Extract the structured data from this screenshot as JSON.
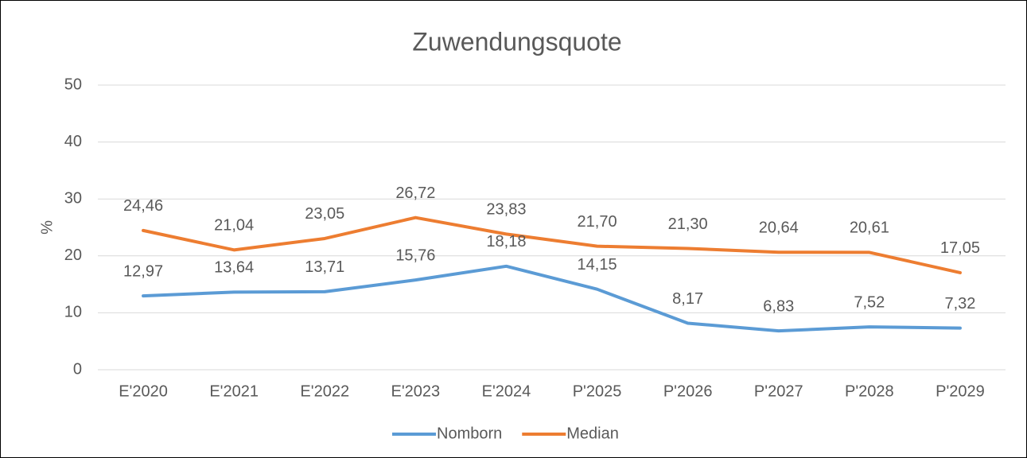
{
  "chart_data": {
    "type": "line",
    "title": "Zuwendungsquote",
    "y_label": "%",
    "categories": [
      "E'2020",
      "E'2021",
      "E'2022",
      "E'2023",
      "E'2024",
      "P'2025",
      "P'2026",
      "P'2027",
      "P'2028",
      "P'2029"
    ],
    "series": [
      {
        "name": "Nomborn",
        "color": "#5b9bd5",
        "values": [
          12.97,
          13.64,
          13.71,
          15.76,
          18.18,
          14.15,
          8.17,
          6.83,
          7.52,
          7.32
        ],
        "value_labels": [
          "12,97",
          "13,64",
          "13,71",
          "15,76",
          "18,18",
          "14,15",
          "8,17",
          "6,83",
          "7,52",
          "7,32"
        ]
      },
      {
        "name": "Median",
        "color": "#ed7d31",
        "values": [
          24.46,
          21.04,
          23.05,
          26.72,
          23.83,
          21.7,
          21.3,
          20.64,
          20.61,
          17.05
        ],
        "value_labels": [
          "24,46",
          "21,04",
          "23,05",
          "26,72",
          "23,83",
          "21,70",
          "21,30",
          "20,64",
          "20,61",
          "17,05"
        ]
      }
    ],
    "ylim": [
      0,
      50
    ],
    "yticks": [
      0,
      10,
      20,
      30,
      40,
      50
    ],
    "grid": true,
    "legend": "bottom"
  }
}
